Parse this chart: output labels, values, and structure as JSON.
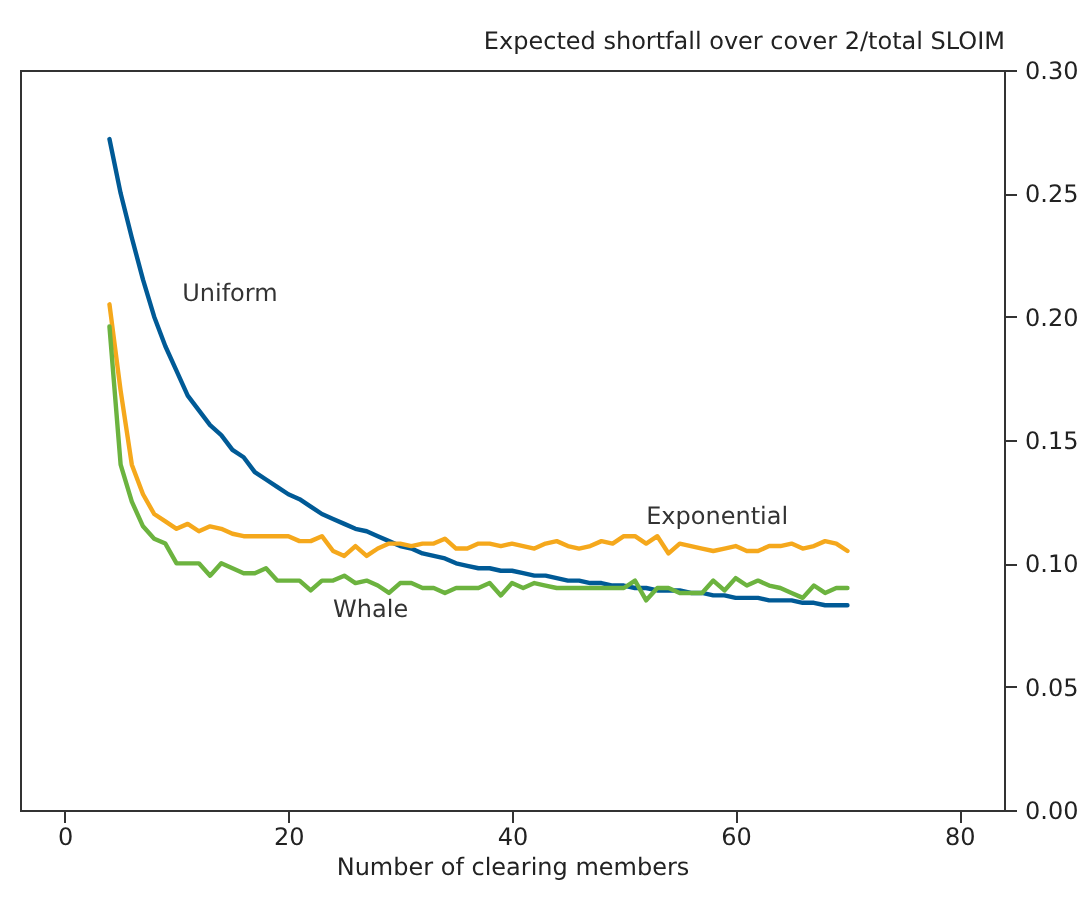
{
  "chart_data": {
    "type": "line",
    "xlabel": "Number of clearing members",
    "ylabel": "Expected shortfall over cover 2/total SLOIM",
    "x": [
      4,
      5,
      6,
      7,
      8,
      9,
      10,
      11,
      12,
      13,
      14,
      15,
      16,
      17,
      18,
      19,
      20,
      21,
      22,
      23,
      24,
      25,
      26,
      27,
      28,
      29,
      30,
      31,
      32,
      33,
      34,
      35,
      36,
      37,
      38,
      39,
      40,
      41,
      42,
      43,
      44,
      45,
      46,
      47,
      48,
      49,
      50,
      51,
      52,
      53,
      54,
      55,
      56,
      57,
      58,
      59,
      60,
      61,
      62,
      63,
      64,
      65,
      66,
      67,
      68,
      69,
      70
    ],
    "series": [
      {
        "name": "Uniform",
        "color": "#005a96",
        "values": [
          0.272,
          0.25,
          0.232,
          0.215,
          0.2,
          0.188,
          0.178,
          0.168,
          0.162,
          0.156,
          0.152,
          0.146,
          0.143,
          0.137,
          0.134,
          0.131,
          0.128,
          0.126,
          0.123,
          0.12,
          0.118,
          0.116,
          0.114,
          0.113,
          0.111,
          0.109,
          0.107,
          0.106,
          0.104,
          0.103,
          0.102,
          0.1,
          0.099,
          0.098,
          0.098,
          0.097,
          0.097,
          0.096,
          0.095,
          0.095,
          0.094,
          0.093,
          0.093,
          0.092,
          0.092,
          0.091,
          0.091,
          0.09,
          0.09,
          0.089,
          0.089,
          0.089,
          0.088,
          0.088,
          0.087,
          0.087,
          0.086,
          0.086,
          0.086,
          0.085,
          0.085,
          0.085,
          0.084,
          0.084,
          0.083,
          0.083,
          0.083
        ]
      },
      {
        "name": "Exponential",
        "color": "#f5a81c",
        "values": [
          0.205,
          0.17,
          0.14,
          0.128,
          0.12,
          0.117,
          0.114,
          0.116,
          0.113,
          0.115,
          0.114,
          0.112,
          0.111,
          0.111,
          0.111,
          0.111,
          0.111,
          0.109,
          0.109,
          0.111,
          0.105,
          0.103,
          0.107,
          0.103,
          0.106,
          0.108,
          0.108,
          0.107,
          0.108,
          0.108,
          0.11,
          0.106,
          0.106,
          0.108,
          0.108,
          0.107,
          0.108,
          0.107,
          0.106,
          0.108,
          0.109,
          0.107,
          0.106,
          0.107,
          0.109,
          0.108,
          0.111,
          0.111,
          0.108,
          0.111,
          0.104,
          0.108,
          0.107,
          0.106,
          0.105,
          0.106,
          0.107,
          0.105,
          0.105,
          0.107,
          0.107,
          0.108,
          0.106,
          0.107,
          0.109,
          0.108,
          0.105
        ]
      },
      {
        "name": "Whale",
        "color": "#6cb33f",
        "values": [
          0.196,
          0.14,
          0.125,
          0.115,
          0.11,
          0.108,
          0.1,
          0.1,
          0.1,
          0.095,
          0.1,
          0.098,
          0.096,
          0.096,
          0.098,
          0.093,
          0.093,
          0.093,
          0.089,
          0.093,
          0.093,
          0.095,
          0.092,
          0.093,
          0.091,
          0.088,
          0.092,
          0.092,
          0.09,
          0.09,
          0.088,
          0.09,
          0.09,
          0.09,
          0.092,
          0.087,
          0.092,
          0.09,
          0.092,
          0.091,
          0.09,
          0.09,
          0.09,
          0.09,
          0.09,
          0.09,
          0.09,
          0.093,
          0.085,
          0.09,
          0.09,
          0.088,
          0.088,
          0.088,
          0.093,
          0.089,
          0.094,
          0.091,
          0.093,
          0.091,
          0.09,
          0.088,
          0.086,
          0.091,
          0.088,
          0.09,
          0.09
        ]
      }
    ],
    "xlim": [
      -4,
      84
    ],
    "xticks": [
      0,
      20,
      40,
      60,
      80
    ],
    "ylim": [
      0,
      0.3
    ],
    "yticks": [
      {
        "value": 0,
        "label": "0.00"
      },
      {
        "value": 0.05,
        "label": "0.05"
      },
      {
        "value": 0.1,
        "label": "0.10"
      },
      {
        "value": 0.15,
        "label": "0.15"
      },
      {
        "value": 0.2,
        "label": "0.20"
      },
      {
        "value": 0.25,
        "label": "0.25"
      },
      {
        "value": 0.3,
        "label": "0.30"
      }
    ],
    "grid": false,
    "legend": false,
    "line_style": "solid"
  }
}
